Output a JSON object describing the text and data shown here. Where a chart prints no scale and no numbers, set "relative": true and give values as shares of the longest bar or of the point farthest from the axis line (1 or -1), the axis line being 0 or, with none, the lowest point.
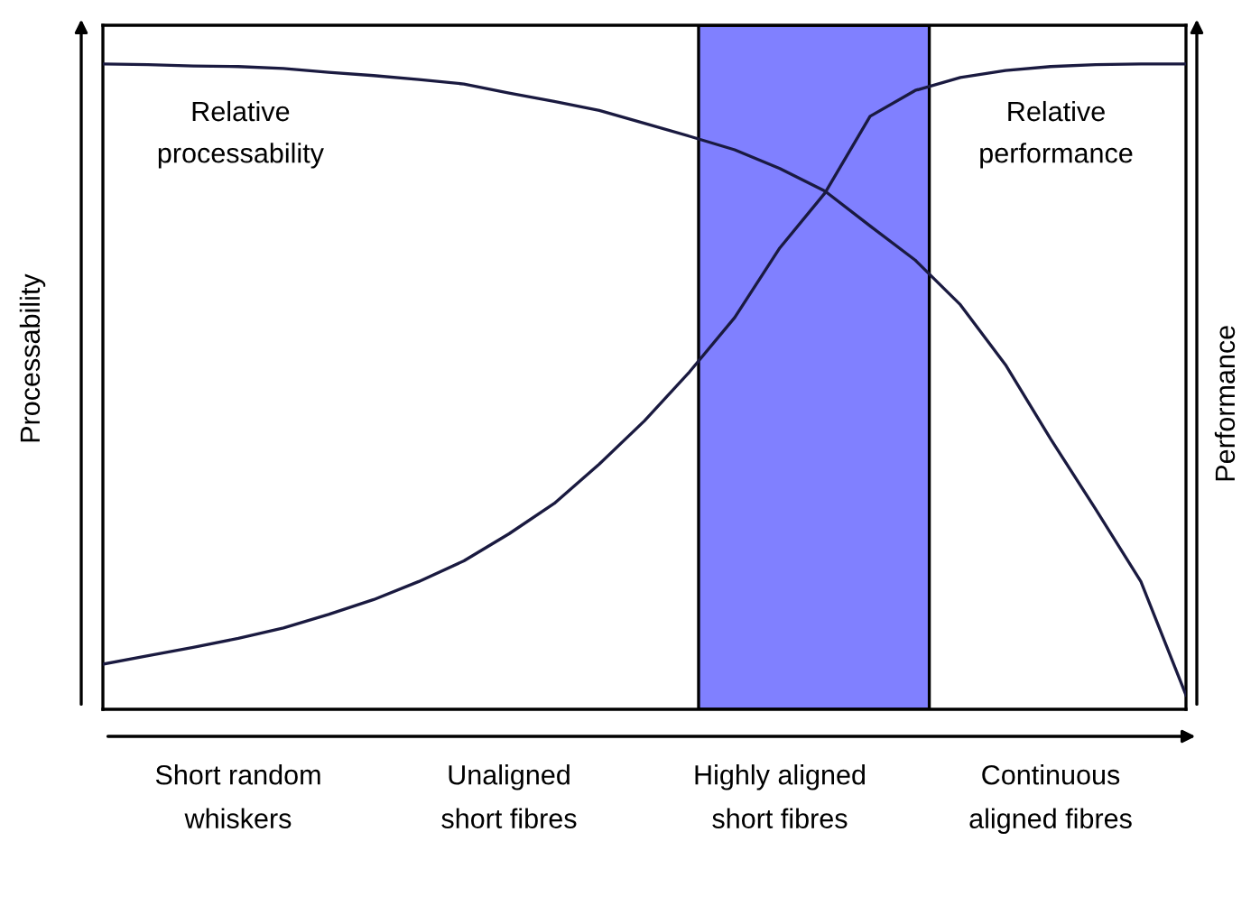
{
  "chart_data": {
    "type": "line",
    "relative": true,
    "ylabel": "Processability",
    "y2label": "Performance",
    "categories": [
      null,
      null,
      null,
      "Short random\nwhiskers",
      null,
      null,
      null,
      null,
      null,
      "Unaligned\nshort fibres",
      null,
      null,
      null,
      null,
      null,
      "Highly aligned\nshort fibres",
      null,
      null,
      null,
      null,
      null,
      "Continuous\naligned fibres",
      null,
      null,
      null
    ],
    "series": [
      {
        "color": "#1a1a40",
        "values": [
          1.0,
          0.999,
          0.997,
          0.996,
          0.993,
          0.987,
          0.982,
          0.976,
          0.969,
          0.955,
          0.942,
          0.928,
          0.908,
          0.888,
          0.867,
          0.838,
          0.803,
          0.749,
          0.696,
          0.627,
          0.534,
          0.419,
          0.31,
          0.198,
          0.022
        ]
      },
      {
        "color": "#1a1a40",
        "values": [
          0.07,
          0.083,
          0.096,
          0.11,
          0.126,
          0.147,
          0.17,
          0.198,
          0.23,
          0.272,
          0.319,
          0.38,
          0.447,
          0.523,
          0.607,
          0.715,
          0.8,
          0.919,
          0.959,
          0.979,
          0.99,
          0.996,
          0.999,
          1.0,
          1.0
        ]
      }
    ],
    "annotations": [
      "Relative\nprocessability",
      "Relative\nperformance"
    ]
  }
}
